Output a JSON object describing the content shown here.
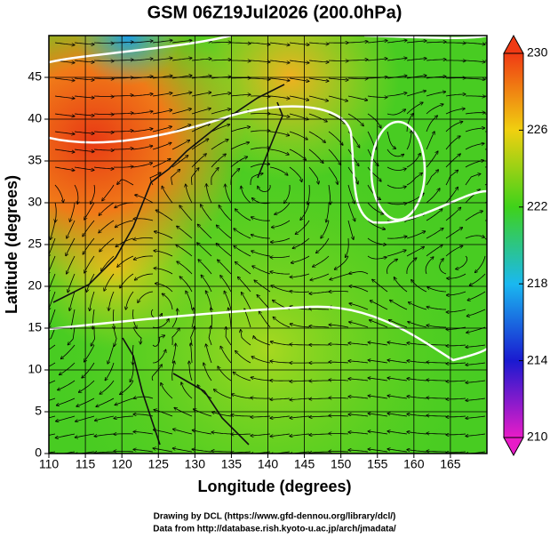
{
  "chart_data": {
    "type": "map",
    "title": "GSM 06Z19Jul2026 (200.0hPa)",
    "x_label": "Longitude (degrees)",
    "y_label": "Latitude  (degrees)",
    "xlim": [
      110,
      170
    ],
    "xticks": [
      110,
      115,
      120,
      125,
      130,
      135,
      140,
      145,
      150,
      155,
      160,
      165
    ],
    "ylim": [
      0,
      50
    ],
    "yticks": [
      0,
      5,
      10,
      15,
      20,
      25,
      30,
      35,
      40,
      45
    ],
    "grid": true,
    "colorbar": {
      "lim": [
        210,
        230
      ],
      "ticks": [
        210,
        214,
        218,
        222,
        226,
        230
      ],
      "colors": [
        "#e81cc8",
        "#1a1ad0",
        "#1ab8f0",
        "#3fd21a",
        "#f0d010",
        "#f03a14"
      ]
    },
    "footer": [
      "Drawing by DCL (https://www.gfd-dennou.org/library/dcl/)",
      "Data from http://database.rish.kyoto-u.ac.jp/arch/jmadata/"
    ]
  }
}
